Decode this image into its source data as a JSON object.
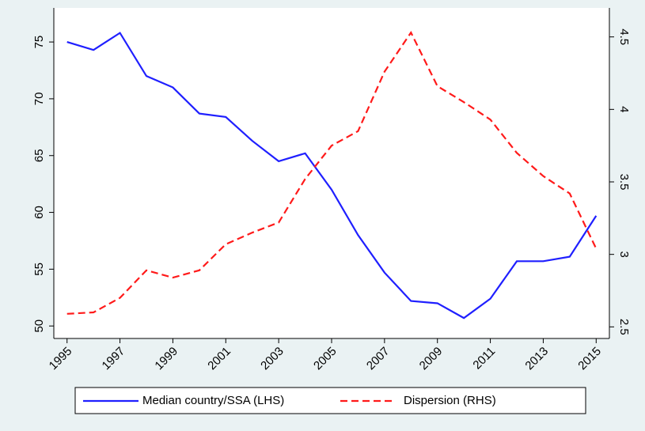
{
  "chart_data": {
    "type": "line",
    "x": [
      1995,
      1996,
      1997,
      1998,
      1999,
      2000,
      2001,
      2002,
      2003,
      2004,
      2005,
      2006,
      2007,
      2008,
      2009,
      2010,
      2011,
      2012,
      2013,
      2014,
      2015
    ],
    "series": [
      {
        "name": "Median country/SSA (LHS)",
        "color": "#1f1fff",
        "dash": false,
        "axis": "y",
        "values": [
          75.0,
          74.3,
          75.8,
          72.0,
          71.0,
          68.7,
          68.4,
          66.3,
          64.5,
          65.2,
          62.0,
          58.0,
          54.7,
          52.2,
          52.0,
          50.7,
          52.4,
          55.7,
          55.7,
          56.1,
          59.7
        ]
      },
      {
        "name": "Dispersion (RHS)",
        "color": "#ff1a1a",
        "dash": true,
        "axis": "y2",
        "values": [
          2.59,
          2.6,
          2.7,
          2.89,
          2.84,
          2.89,
          3.07,
          3.15,
          3.22,
          3.52,
          3.75,
          3.85,
          4.26,
          4.53,
          4.16,
          4.05,
          3.93,
          3.7,
          3.54,
          3.42,
          3.04
        ]
      }
    ],
    "xlim": [
      1994.5,
      2015.5
    ],
    "xticks": [
      1995,
      1997,
      1999,
      2001,
      2003,
      2005,
      2007,
      2009,
      2011,
      2013,
      2015
    ],
    "ylim": [
      48.9,
      78
    ],
    "yticks": [
      50,
      55,
      60,
      65,
      70,
      75
    ],
    "y2lim": [
      2.42,
      4.7
    ],
    "y2ticks": [
      2.5,
      3,
      3.5,
      4,
      4.5
    ],
    "grid": false,
    "legend": "bottom"
  }
}
